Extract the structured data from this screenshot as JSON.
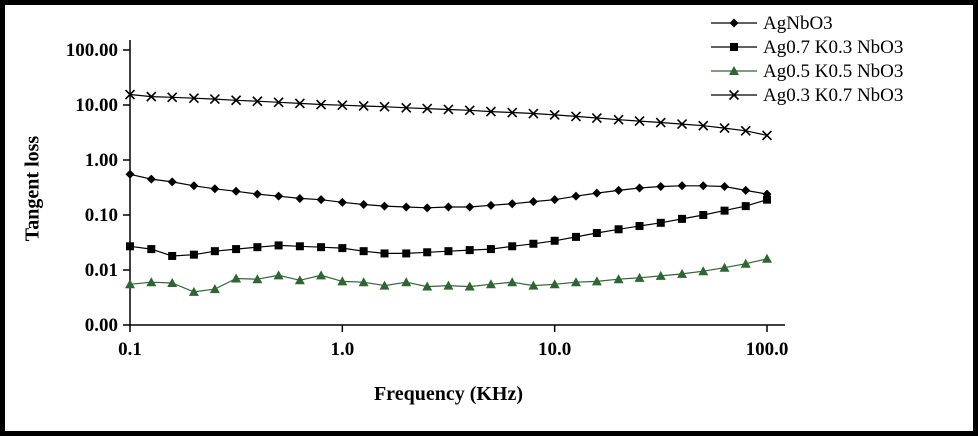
{
  "chart_data": {
    "type": "line",
    "title": "",
    "xlabel": "Frequency (KHz)",
    "ylabel": "Tangent loss",
    "x_scale": "log",
    "y_scale": "log",
    "xlim": [
      0.1,
      100
    ],
    "ylim_log": [
      0.001,
      100
    ],
    "grid": false,
    "legend_position": "top-right",
    "x_ticks": [
      {
        "label": "0.1",
        "value": 0.1
      },
      {
        "label": "1.0",
        "value": 1
      },
      {
        "label": "10.0",
        "value": 10
      },
      {
        "label": "100.0",
        "value": 100
      }
    ],
    "y_ticks": [
      {
        "label": "100.00",
        "value": 100
      },
      {
        "label": "10.00",
        "value": 10
      },
      {
        "label": "1.00",
        "value": 1
      },
      {
        "label": "0.10",
        "value": 0.1
      },
      {
        "label": "0.01",
        "value": 0.01
      },
      {
        "label": "0.00",
        "value": 0.001
      }
    ],
    "x": [
      0.1,
      0.126,
      0.158,
      0.2,
      0.251,
      0.316,
      0.398,
      0.501,
      0.631,
      0.794,
      1.0,
      1.26,
      1.58,
      2.0,
      2.51,
      3.16,
      3.98,
      5.01,
      6.31,
      7.94,
      10.0,
      12.6,
      15.8,
      20.0,
      25.1,
      31.6,
      39.8,
      50.1,
      63.1,
      79.4,
      100.0
    ],
    "series": [
      {
        "name": "AgNbO3",
        "marker": "diamond",
        "color": "#000000",
        "values": [
          0.55,
          0.45,
          0.4,
          0.34,
          0.3,
          0.27,
          0.24,
          0.22,
          0.2,
          0.19,
          0.17,
          0.155,
          0.145,
          0.14,
          0.135,
          0.14,
          0.14,
          0.15,
          0.16,
          0.175,
          0.19,
          0.22,
          0.25,
          0.28,
          0.31,
          0.33,
          0.34,
          0.34,
          0.33,
          0.28,
          0.24
        ]
      },
      {
        "name": "Ag0.7 K0.3 NbO3",
        "marker": "square",
        "color": "#000000",
        "values": [
          0.027,
          0.024,
          0.018,
          0.019,
          0.022,
          0.024,
          0.026,
          0.028,
          0.027,
          0.026,
          0.025,
          0.022,
          0.02,
          0.02,
          0.021,
          0.022,
          0.023,
          0.024,
          0.027,
          0.03,
          0.034,
          0.04,
          0.047,
          0.055,
          0.063,
          0.072,
          0.085,
          0.1,
          0.12,
          0.145,
          0.19
        ]
      },
      {
        "name": "Ag0.5 K0.5 NbO3",
        "marker": "triangle",
        "color": "#2e6633",
        "values": [
          0.0055,
          0.006,
          0.0058,
          0.004,
          0.0045,
          0.007,
          0.0068,
          0.008,
          0.0065,
          0.008,
          0.0062,
          0.006,
          0.0052,
          0.006,
          0.005,
          0.0052,
          0.005,
          0.0055,
          0.006,
          0.0052,
          0.0055,
          0.006,
          0.0062,
          0.0068,
          0.0072,
          0.0078,
          0.0085,
          0.0095,
          0.011,
          0.013,
          0.016
        ]
      },
      {
        "name": "Ag0.3 K0.7 NbO3",
        "marker": "x",
        "color": "#000000",
        "values": [
          15.5,
          14.2,
          13.8,
          13.3,
          12.8,
          12.2,
          11.7,
          11.2,
          10.7,
          10.2,
          9.9,
          9.6,
          9.3,
          8.9,
          8.6,
          8.3,
          8.0,
          7.6,
          7.3,
          7.0,
          6.6,
          6.2,
          5.8,
          5.4,
          5.1,
          4.8,
          4.5,
          4.2,
          3.8,
          3.4,
          2.8
        ]
      }
    ]
  }
}
